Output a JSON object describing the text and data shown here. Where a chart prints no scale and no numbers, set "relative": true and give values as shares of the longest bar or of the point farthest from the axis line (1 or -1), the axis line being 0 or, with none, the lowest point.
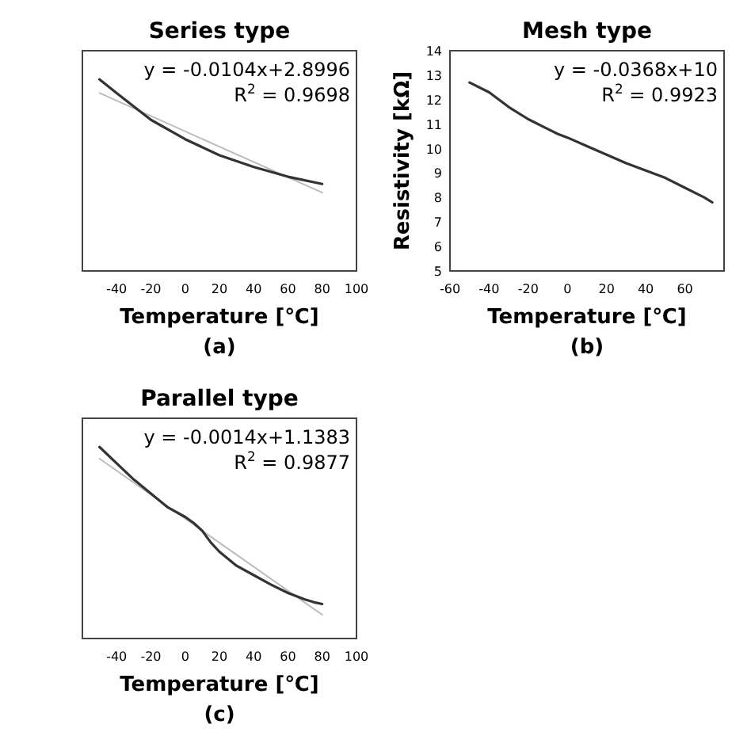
{
  "chart_data": [
    {
      "type": "line",
      "title": "Series type",
      "xlabel": "Temperature [℃]",
      "relative": true,
      "xlim": [
        -60,
        100
      ],
      "xticks": [
        -40,
        -20,
        0,
        20,
        40,
        60,
        80,
        100
      ],
      "grid": false,
      "annotations": [
        "y = -0.0104x+2.8996",
        "R$^{2}$ = 0.9698",
        "(a)"
      ],
      "series": [
        {
          "color": "#bbbbbb",
          "x": [
            -50,
            80
          ],
          "values": [
            0.929,
            0.409
          ]
        },
        {
          "color": "#333333",
          "x": [
            -50,
            -40,
            -20,
            0,
            20,
            40,
            60,
            80
          ],
          "values": [
            1,
            0.929,
            0.789,
            0.688,
            0.604,
            0.543,
            0.492,
            0.454
          ]
        }
      ]
    },
    {
      "type": "line",
      "title": "Mesh type",
      "xlabel": "Temperature [℃]",
      "ylabel": "Resistivity [kΩ]",
      "xlim": [
        -60,
        80
      ],
      "xticks": [
        -60,
        -40,
        -20,
        0,
        20,
        40,
        60
      ],
      "ylim": [
        5,
        14
      ],
      "yticks": [
        5,
        6,
        7,
        8,
        9,
        10,
        11,
        12,
        13,
        14
      ],
      "grid": false,
      "annotations": [
        "y = -0.0368x+10",
        "R$^{2}$ = 0.9923",
        "(b)"
      ],
      "series": [
        {
          "color": "#333333",
          "x": [
            -50,
            -40,
            -30,
            -20,
            -10,
            -5,
            0,
            10,
            20,
            30,
            40,
            50,
            60,
            70,
            74
          ],
          "values": [
            12.7,
            12.3,
            11.7,
            11.2,
            10.8,
            10.6,
            10.45,
            10.1,
            9.75,
            9.4,
            9.1,
            8.8,
            8.4,
            8.0,
            7.8
          ]
        }
      ]
    },
    {
      "type": "line",
      "title": "Parallel type",
      "xlabel": "Temperature [℃]",
      "relative": true,
      "xlim": [
        -60,
        100
      ],
      "xticks": [
        -40,
        -20,
        0,
        20,
        40,
        60,
        80,
        100
      ],
      "grid": false,
      "annotations": [
        "y = -0.0014x+1.1383",
        "R$^{2}$ = 0.9877",
        "(c)"
      ],
      "series": [
        {
          "color": "#bbbbbb",
          "x": [
            -50,
            80
          ],
          "values": [
            0.939,
            0.124
          ]
        },
        {
          "color": "#333333",
          "x": [
            -50,
            -40,
            -30,
            -20,
            -10,
            0,
            5,
            10,
            15,
            20,
            30,
            40,
            50,
            60,
            70,
            75,
            80
          ],
          "values": [
            1,
            0.915,
            0.83,
            0.757,
            0.684,
            0.635,
            0.603,
            0.562,
            0.501,
            0.453,
            0.38,
            0.331,
            0.282,
            0.238,
            0.204,
            0.19,
            0.18
          ]
        }
      ]
    }
  ]
}
